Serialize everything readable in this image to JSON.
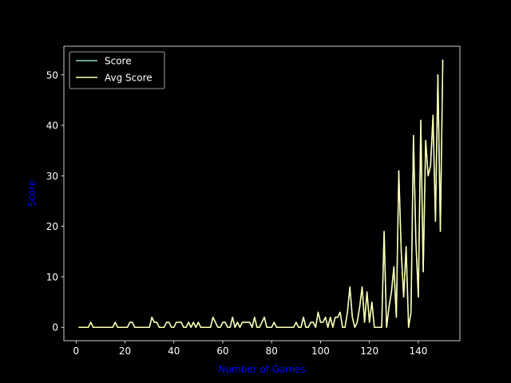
{
  "chart_data": {
    "type": "line",
    "xlabel": "Number of Games",
    "ylabel": "Score",
    "xlim": [
      -5,
      157
    ],
    "ylim": [
      -2.65,
      55.65
    ],
    "xticks": [
      0,
      20,
      40,
      60,
      80,
      100,
      120,
      140
    ],
    "yticks": [
      0,
      10,
      20,
      30,
      40,
      50
    ],
    "grid": false,
    "legend_position": "upper-left",
    "x": [
      1,
      2,
      3,
      4,
      5,
      6,
      7,
      8,
      9,
      10,
      11,
      12,
      13,
      14,
      15,
      16,
      17,
      18,
      19,
      20,
      21,
      22,
      23,
      24,
      25,
      26,
      27,
      28,
      29,
      30,
      31,
      32,
      33,
      34,
      35,
      36,
      37,
      38,
      39,
      40,
      41,
      42,
      43,
      44,
      45,
      46,
      47,
      48,
      49,
      50,
      51,
      52,
      53,
      54,
      55,
      56,
      57,
      58,
      59,
      60,
      61,
      62,
      63,
      64,
      65,
      66,
      67,
      68,
      69,
      70,
      71,
      72,
      73,
      74,
      75,
      76,
      77,
      78,
      79,
      80,
      81,
      82,
      83,
      84,
      85,
      86,
      87,
      88,
      89,
      90,
      91,
      92,
      93,
      94,
      95,
      96,
      97,
      98,
      99,
      100,
      101,
      102,
      103,
      104,
      105,
      106,
      107,
      108,
      109,
      110,
      111,
      112,
      113,
      114,
      115,
      116,
      117,
      118,
      119,
      120,
      121,
      122,
      123,
      124,
      125,
      126,
      127,
      128,
      129,
      130,
      131,
      132,
      133,
      134,
      135,
      136,
      137,
      138,
      139,
      140,
      141,
      142,
      143,
      144,
      145,
      146,
      147,
      148,
      149,
      150
    ],
    "series": [
      {
        "name": "Score",
        "color": "#8dd3c7",
        "values": [
          0,
          0,
          0,
          0,
          0,
          1,
          0,
          0,
          0,
          0,
          0,
          0,
          0,
          0,
          0,
          1,
          0,
          0,
          0,
          0,
          0,
          1,
          1,
          0,
          0,
          0,
          0,
          0,
          0,
          0,
          2,
          1,
          1,
          0,
          0,
          0,
          1,
          1,
          0,
          0,
          1,
          1,
          1,
          0,
          0,
          1,
          0,
          1,
          0,
          1,
          0,
          0,
          0,
          0,
          0,
          2,
          1,
          0,
          0,
          1,
          1,
          0,
          0,
          2,
          0,
          1,
          0,
          1,
          1,
          1,
          1,
          0,
          2,
          0,
          0,
          1,
          2,
          0,
          0,
          0,
          1,
          0,
          0,
          0,
          0,
          0,
          0,
          0,
          0,
          1,
          0,
          0,
          2,
          0,
          0,
          1,
          1,
          0,
          3,
          1,
          1,
          2,
          0,
          2,
          0,
          2,
          2,
          3,
          0,
          0,
          3,
          8,
          2,
          0,
          1,
          4,
          8,
          1,
          7,
          1,
          5,
          0,
          0,
          0,
          0,
          19,
          0,
          4,
          7,
          12,
          2,
          31,
          15,
          6,
          16,
          0,
          3,
          38,
          17,
          6,
          41,
          11,
          37,
          30,
          32,
          42,
          21,
          50,
          19,
          53
        ]
      },
      {
        "name": "Avg Score",
        "color": "#ffffb3",
        "values": [
          0,
          0,
          0,
          0,
          0,
          1,
          0,
          0,
          0,
          0,
          0,
          0,
          0,
          0,
          0,
          1,
          0,
          0,
          0,
          0,
          0,
          1,
          1,
          0,
          0,
          0,
          0,
          0,
          0,
          0,
          2,
          1,
          1,
          0,
          0,
          0,
          1,
          1,
          0,
          0,
          1,
          1,
          1,
          0,
          0,
          1,
          0,
          1,
          0,
          1,
          0,
          0,
          0,
          0,
          0,
          2,
          1,
          0,
          0,
          1,
          1,
          0,
          0,
          2,
          0,
          1,
          0,
          1,
          1,
          1,
          1,
          0,
          2,
          0,
          0,
          1,
          2,
          0,
          0,
          0,
          1,
          0,
          0,
          0,
          0,
          0,
          0,
          0,
          0,
          1,
          0,
          0,
          2,
          0,
          0,
          1,
          1,
          0,
          3,
          1,
          1,
          2,
          0,
          2,
          0,
          2,
          2,
          3,
          0,
          0,
          3,
          8,
          2,
          0,
          1,
          4,
          8,
          1,
          7,
          1,
          5,
          0,
          0,
          0,
          0,
          19,
          0,
          4,
          7,
          12,
          2,
          31,
          15,
          6,
          16,
          0,
          3,
          38,
          17,
          6,
          41,
          11,
          37,
          30,
          32,
          42,
          21,
          50,
          19,
          53
        ]
      }
    ]
  }
}
